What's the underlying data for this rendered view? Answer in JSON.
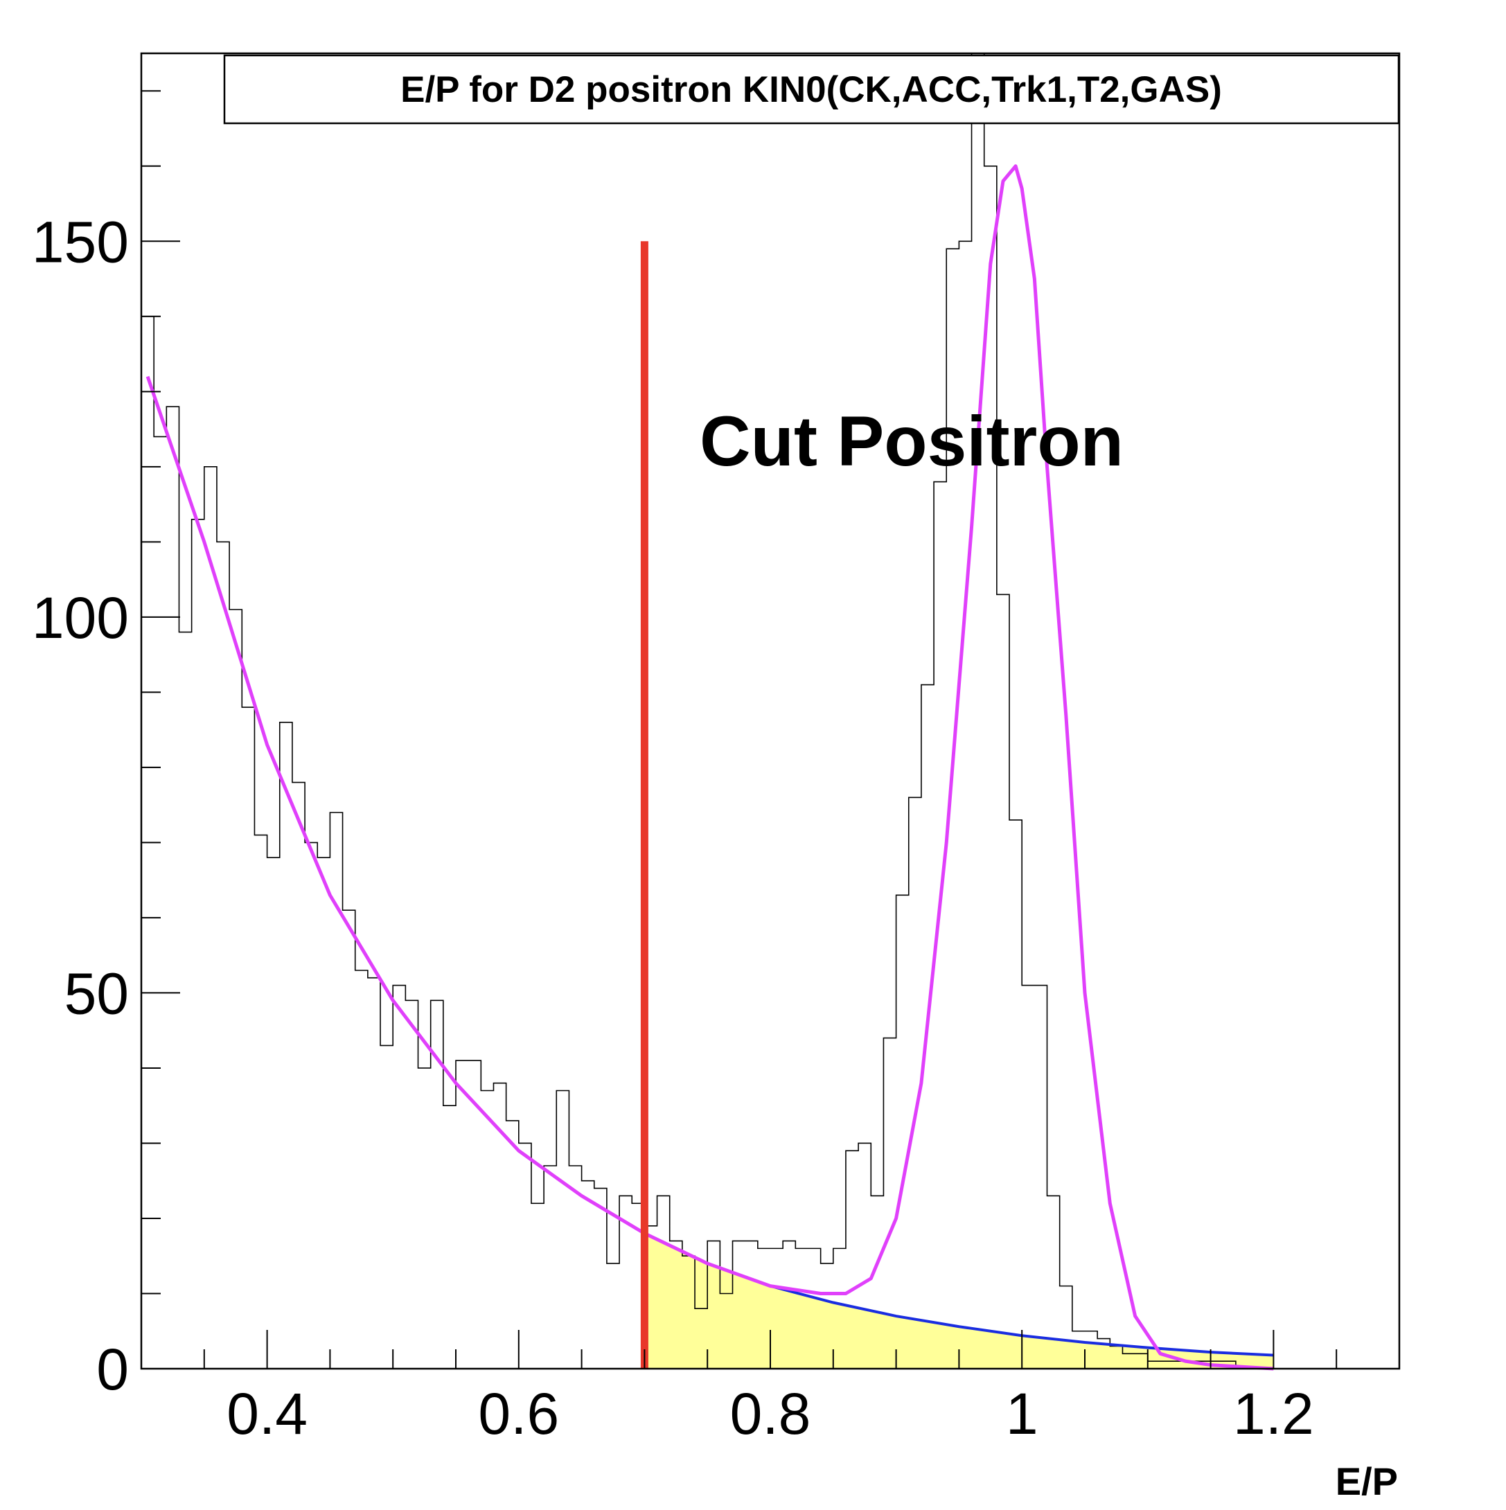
{
  "chart_data": {
    "type": "histogram",
    "title": "E/P for D2 positron KIN0(CK,ACC,Trk1,T2,GAS)",
    "xlabel": "E/P",
    "ylabel": "",
    "xlim": [
      0.3,
      1.3
    ],
    "ylim": [
      0,
      175
    ],
    "x_tick_labels": [
      "0.4",
      "0.6",
      "0.8",
      "1",
      "1.2"
    ],
    "y_tick_labels": [
      "0",
      "50",
      "100",
      "150"
    ],
    "grid": false,
    "colors": {
      "histogram": "#000000",
      "total_fit": "#e040fb",
      "background_fit": "#1a2de0",
      "cut_line": "#e8382a",
      "shaded_area": "#ffff99"
    },
    "annotation": "Cut Positron",
    "cut": {
      "x": 0.7,
      "y_top": 150
    },
    "histogram": {
      "bin_width": 0.01,
      "x_start": 0.3,
      "counts": [
        140,
        124,
        128,
        98,
        113,
        120,
        110,
        101,
        88,
        71,
        68,
        86,
        78,
        70,
        68,
        74,
        61,
        53,
        52,
        43,
        51,
        49,
        40,
        49,
        35,
        41,
        41,
        37,
        38,
        33,
        30,
        22,
        27,
        37,
        27,
        25,
        24,
        14,
        23,
        22,
        19,
        23,
        17,
        15,
        8,
        17,
        10,
        17,
        17,
        16,
        16,
        17,
        16,
        16,
        14,
        16,
        29,
        30,
        23,
        44,
        63,
        76,
        91,
        118,
        149,
        150,
        176,
        160,
        103,
        73,
        51,
        51,
        23,
        11,
        5,
        5,
        4,
        3,
        2,
        2,
        1,
        1,
        1,
        1,
        1,
        1,
        1,
        0
      ],
      "note": ""
    },
    "total_fit": {
      "x": [
        0.305,
        0.35,
        0.4,
        0.45,
        0.5,
        0.55,
        0.6,
        0.65,
        0.7,
        0.75,
        0.8,
        0.84,
        0.86,
        0.88,
        0.9,
        0.92,
        0.94,
        0.96,
        0.975,
        0.985,
        0.995,
        1.0,
        1.01,
        1.02,
        1.035,
        1.05,
        1.07,
        1.09,
        1.11,
        1.13,
        1.15,
        1.2
      ],
      "y": [
        132,
        110,
        83,
        63,
        49,
        38,
        29,
        23,
        18,
        14,
        11,
        10,
        10,
        12,
        20,
        38,
        70,
        112,
        147,
        158,
        160,
        157,
        145,
        120,
        87,
        50,
        22,
        7,
        2,
        1,
        0.5,
        0
      ]
    },
    "background_fit": {
      "x": [
        0.7,
        0.75,
        0.8,
        0.85,
        0.9,
        0.95,
        1.0,
        1.05,
        1.1,
        1.15,
        1.2
      ],
      "y": [
        18,
        14,
        11,
        8.8,
        7.0,
        5.6,
        4.4,
        3.5,
        2.8,
        2.2,
        1.8
      ]
    }
  }
}
